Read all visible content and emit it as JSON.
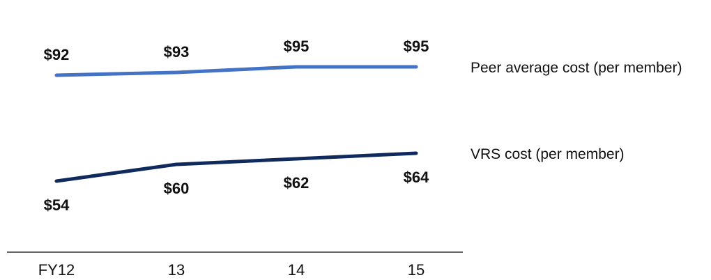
{
  "chart_data": {
    "type": "line",
    "title": "",
    "xlabel": "",
    "ylabel": "",
    "categories": [
      "FY12",
      "13",
      "14",
      "15"
    ],
    "ylim": [
      30,
      110
    ],
    "grid": false,
    "legend_placement": "right, inline at line ends",
    "series": [
      {
        "name": "Peer average cost (per member)",
        "values": [
          92,
          93,
          95,
          95
        ],
        "labels": [
          "$92",
          "$93",
          "$95",
          "$95"
        ],
        "color": "#4472C4",
        "label_position": "above"
      },
      {
        "name": "VRS cost (per member)",
        "values": [
          54,
          60,
          62,
          64
        ],
        "labels": [
          "$54",
          "$60",
          "$62",
          "$64"
        ],
        "color": "#102A5E",
        "label_position": "below"
      }
    ]
  }
}
